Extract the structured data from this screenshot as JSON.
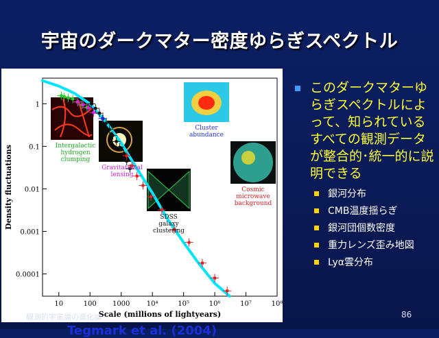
{
  "slide": {
    "title": "宇宙のダークマター密度ゆらぎスペクトル",
    "footer": "観測的宇宙論の進化論",
    "page_number": "86"
  },
  "bullets": {
    "main": "このダークマターゆらぎスペクトルによって、知られているすべての観測データが整合的･統一的に説明できる",
    "items": [
      "銀河分布",
      "CMB温度揺らぎ",
      "銀河団個数密度",
      "重力レンズ歪み地図",
      "Lyα雲分布"
    ]
  },
  "figure": {
    "credit": "Tegmark et al. (2004)",
    "labels": {
      "lya": [
        "Intergalactic",
        "hydrogen",
        "clumping"
      ],
      "lensing": [
        "Gravitational",
        "lensing"
      ],
      "sdss": [
        "SDSS",
        "galaxy",
        "clustering"
      ],
      "cluster": [
        "Cluster",
        "abundance"
      ],
      "cmb": [
        "Cosmic",
        "microwave",
        "background"
      ]
    },
    "colors": {
      "lya": "#22cc22",
      "lensing": "#dd22dd",
      "sdss": "#111111",
      "cluster": "#2233dd",
      "cmb": "#dd2222",
      "model_curve": "#00e5ff"
    }
  },
  "chart_data": {
    "type": "scatter",
    "xlabel": "Scale (millions of lightyears)",
    "ylabel": "Density fluctuations",
    "x_scale": "log",
    "y_scale": "log",
    "xlim": [
      3,
      100000000
    ],
    "ylim": [
      3e-05,
      4
    ],
    "x_ticks": [
      {
        "value": 10,
        "label": "10"
      },
      {
        "value": 100,
        "label": "100"
      },
      {
        "value": 1000,
        "label": "1000"
      },
      {
        "value": 10000,
        "label": "10⁴"
      },
      {
        "value": 100000,
        "label": "10⁵"
      },
      {
        "value": 1000000,
        "label": "10⁶"
      },
      {
        "value": 10000000,
        "label": "10⁷"
      },
      {
        "value": 100000000,
        "label": "10⁸"
      }
    ],
    "y_ticks": [
      {
        "value": 1,
        "label": "1"
      },
      {
        "value": 0.1,
        "label": "0.1"
      },
      {
        "value": 0.01,
        "label": "0.01"
      },
      {
        "value": 0.001,
        "label": "0.001"
      },
      {
        "value": 0.0001,
        "label": "0.0001"
      }
    ],
    "model_curve": [
      [
        3,
        3.5
      ],
      [
        10,
        2.6
      ],
      [
        30,
        1.8
      ],
      [
        100,
        1.0
      ],
      [
        300,
        0.4
      ],
      [
        1000,
        0.12
      ],
      [
        3000,
        0.032
      ],
      [
        10000,
        0.008
      ],
      [
        30000,
        0.002
      ],
      [
        100000,
        0.00055
      ],
      [
        300000,
        0.00018
      ],
      [
        1000000,
        6e-05
      ],
      [
        3000000,
        3e-05
      ]
    ],
    "series": [
      {
        "name": "Intergalactic hydrogen clumping",
        "color": "#22cc22",
        "points": [
          [
            12,
            1.55
          ],
          [
            15,
            1.45
          ],
          [
            20,
            1.38
          ],
          [
            28,
            1.3
          ],
          [
            40,
            1.1
          ],
          [
            55,
            0.95
          ],
          [
            80,
            0.82
          ]
        ]
      },
      {
        "name": "Gravitational lensing",
        "color": "#dd22dd",
        "points": [
          [
            40,
            1.1
          ],
          [
            60,
            0.95
          ],
          [
            90,
            0.8
          ],
          [
            130,
            0.62
          ]
        ]
      },
      {
        "name": "SDSS galaxy clustering",
        "color": "#111111",
        "points": [
          [
            110,
            1.0
          ],
          [
            150,
            0.78
          ],
          [
            200,
            0.6
          ],
          [
            260,
            0.45
          ],
          [
            330,
            0.35
          ],
          [
            420,
            0.25
          ],
          [
            540,
            0.18
          ],
          [
            700,
            0.13
          ],
          [
            900,
            0.095
          ],
          [
            1200,
            0.065
          ],
          [
            1500,
            0.045
          ],
          [
            1900,
            0.03
          ]
        ]
      },
      {
        "name": "Cluster abundance",
        "color": "#2233dd",
        "points": [
          [
            250,
            0.45
          ]
        ]
      },
      {
        "name": "Cosmic microwave background",
        "color": "#dd2222",
        "points": [
          [
            1500,
            0.06
          ],
          [
            2200,
            0.035
          ],
          [
            3200,
            0.02
          ],
          [
            5000,
            0.012
          ],
          [
            9000,
            0.0065
          ],
          [
            20000,
            0.0032
          ],
          [
            50000,
            0.0011
          ],
          [
            150000,
            0.00055
          ],
          [
            400000,
            0.00018
          ],
          [
            1000000,
            8e-05
          ],
          [
            2500000,
            4e-05
          ]
        ]
      }
    ]
  }
}
